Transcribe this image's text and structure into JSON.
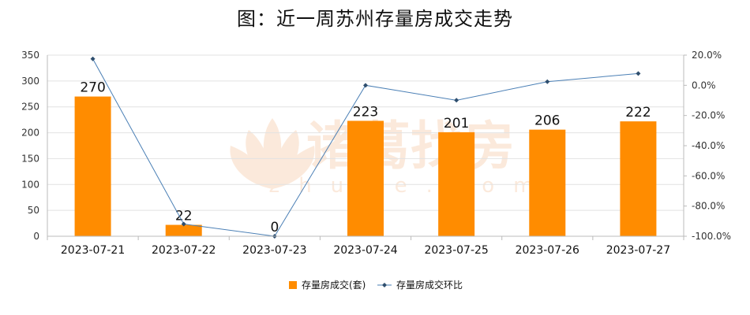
{
  "chart_data": {
    "type": "bar",
    "title": "图：近一周苏州存量房成交走势",
    "categories": [
      "2023-07-21",
      "2023-07-22",
      "2023-07-23",
      "2023-07-24",
      "2023-07-25",
      "2023-07-26",
      "2023-07-27"
    ],
    "series": [
      {
        "name": "存量房成交(套)",
        "type": "bar",
        "axis": "left",
        "color": "#FF8C00",
        "values": [
          270,
          22,
          0,
          223,
          201,
          206,
          222
        ]
      },
      {
        "name": "存量房成交环比",
        "type": "line",
        "axis": "right",
        "color": "#4A7FB5",
        "values": [
          17.5,
          -91.9,
          -100.0,
          0.0,
          -9.9,
          2.4,
          7.8
        ]
      }
    ],
    "left_axis": {
      "min": 0,
      "max": 350,
      "ticks": [
        "0",
        "50",
        "100",
        "150",
        "200",
        "250",
        "300",
        "350"
      ]
    },
    "right_axis": {
      "min": -100,
      "max": 20,
      "ticks": [
        "-100.0%",
        "-80.0%",
        "-60.0%",
        "-40.0%",
        "-20.0%",
        "0.0%",
        "20.0%"
      ]
    },
    "grid": "horizontal",
    "legend_position": "bottom",
    "watermark": {
      "brand": "诸葛找房",
      "site": "zhuge.com"
    }
  }
}
